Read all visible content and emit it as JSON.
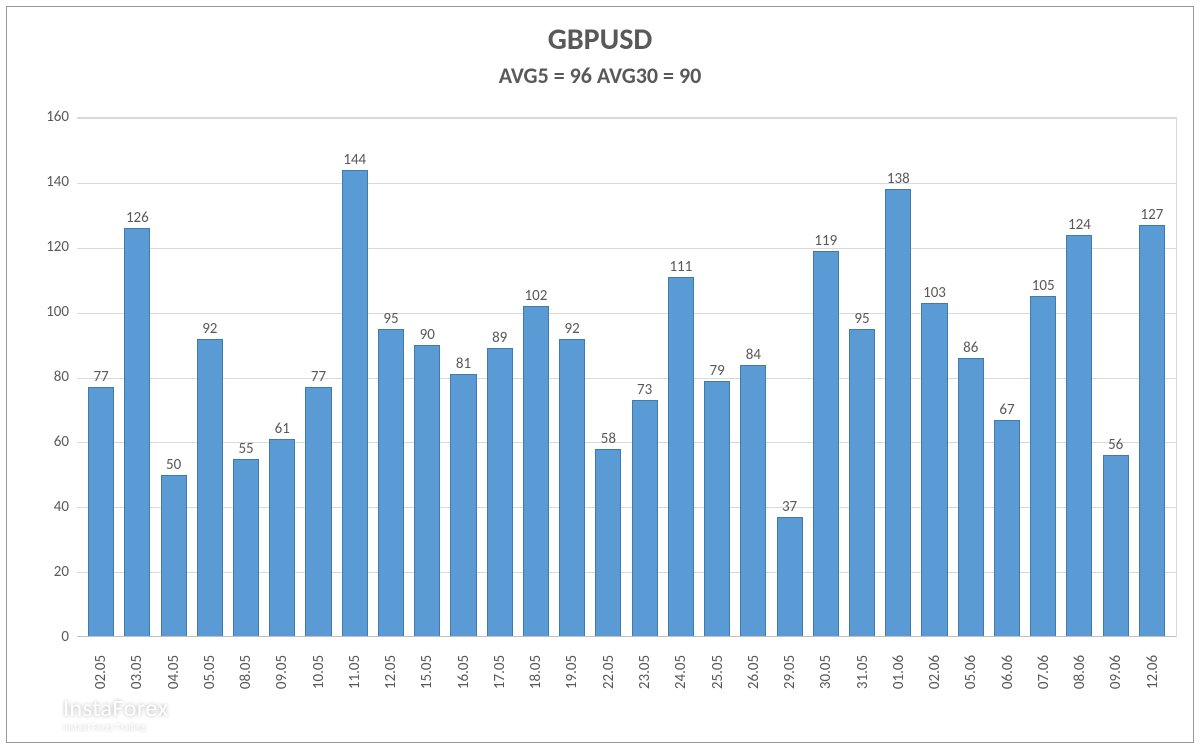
{
  "chart": {
    "type": "bar",
    "title": "GBPUSD",
    "title_fontsize": 30,
    "subtitle": "AVG5 = 96 AVG30 = 90",
    "subtitle_fontsize": 22,
    "title_color": "#595959",
    "background_color": "#ffffff",
    "plot_border_color": "#d9d9d9",
    "grid_color": "#d9d9d9",
    "baseline_color": "#bfbfbf",
    "bar_fill": "#5b9bd5",
    "bar_border": "#3f7cac",
    "label_color": "#595959",
    "value_fontsize": 15,
    "axis_fontsize": 15,
    "ylim": [
      0,
      160
    ],
    "ytick_step": 20,
    "yticks": [
      0,
      20,
      40,
      60,
      80,
      100,
      120,
      140,
      160
    ],
    "bar_width_ratio": 0.72,
    "categories": [
      "02.05",
      "03.05",
      "04.05",
      "05.05",
      "08.05",
      "09.05",
      "10.05",
      "11.05",
      "12.05",
      "15.05",
      "16.05",
      "17.05",
      "18.05",
      "19.05",
      "22.05",
      "23.05",
      "24.05",
      "25.05",
      "26.05",
      "29.05",
      "30.05",
      "31.05",
      "01.06",
      "02.06",
      "05.06",
      "06.06",
      "07.06",
      "08.06",
      "09.06",
      "12.06"
    ],
    "values": [
      77,
      126,
      50,
      92,
      55,
      61,
      77,
      144,
      95,
      90,
      81,
      89,
      102,
      92,
      58,
      73,
      111,
      79,
      84,
      37,
      119,
      95,
      138,
      103,
      86,
      67,
      105,
      124,
      56,
      127
    ]
  },
  "watermark": {
    "main": "InstaForex",
    "sub": "Instant Forex Trading",
    "color": "#ffffff",
    "opacity": 0.85
  }
}
